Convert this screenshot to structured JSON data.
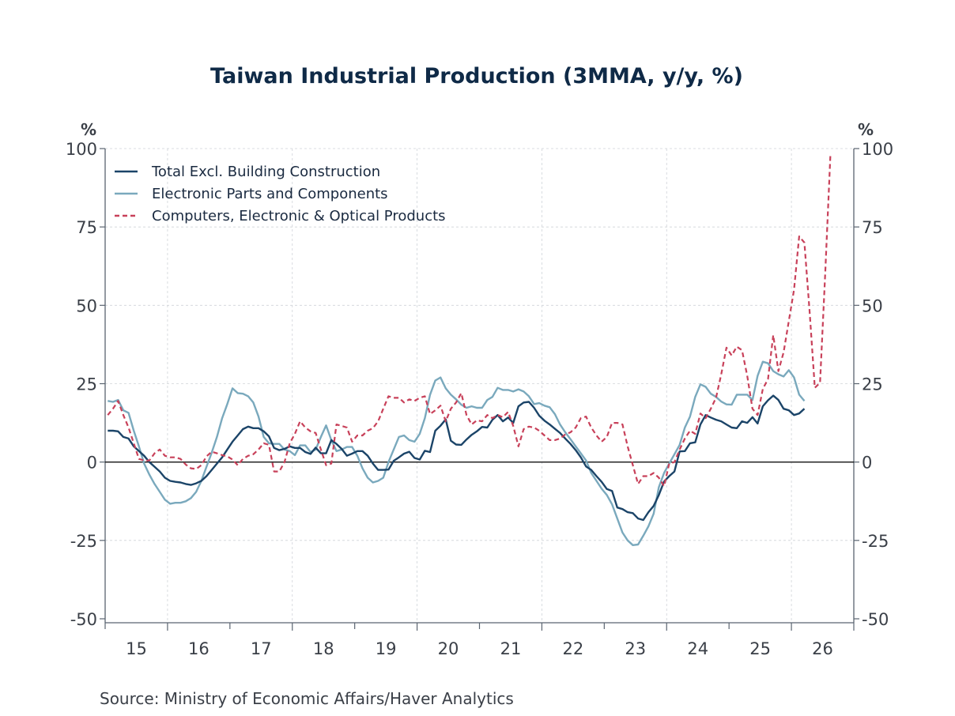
{
  "chart_data": {
    "type": "line",
    "title": "Taiwan Industrial Production (3MMA, y/y, %)",
    "source": "Source:  Ministry of Economic Affairs/Haver Analytics",
    "xlabel": "",
    "ylabel_left": "%",
    "ylabel_right": "%",
    "ylim": [
      -50,
      100
    ],
    "yticks": [
      100,
      75,
      50,
      25,
      0,
      -25,
      -50
    ],
    "ytick_labels": [
      "100",
      "75",
      "50",
      "25",
      "0",
      "-25",
      "-50"
    ],
    "x_start": "2015-01",
    "x_end": "2026-12",
    "x_tick_labels": [
      "15",
      "16",
      "17",
      "18",
      "19",
      "20",
      "21",
      "22",
      "23",
      "24",
      "25",
      "26"
    ],
    "grid": true,
    "zero_line": true,
    "legend_position": "top-left",
    "frequency": "monthly",
    "series": [
      {
        "name": "Total Excl. Building Construction",
        "color": "#1b4468",
        "style": "solid",
        "start": "2015-01",
        "values": [
          10,
          10,
          9.8,
          8,
          7.5,
          5,
          3.5,
          2,
          0,
          -1.5,
          -3,
          -5,
          -6,
          -6.3,
          -6.5,
          -7,
          -7.3,
          -6.8,
          -6,
          -4.5,
          -2.5,
          -0.5,
          1.5,
          4,
          6.5,
          8.5,
          10.5,
          11.3,
          10.8,
          10.8,
          9.8,
          8.2,
          4.5,
          3.8,
          4.2,
          5,
          4.5,
          4.5,
          3.2,
          2.6,
          4.6,
          2.8,
          2.8,
          7,
          5.8,
          4.2,
          2,
          2.7,
          3.5,
          3.5,
          2,
          -0.5,
          -2.5,
          -2.5,
          -2.4,
          0.4,
          1.5,
          2.7,
          3.3,
          1.3,
          0.8,
          3.6,
          3.2,
          10,
          11.6,
          13.6,
          6.8,
          5.6,
          5.5,
          7.2,
          8.7,
          9.8,
          11.2,
          11,
          13.5,
          15,
          13,
          14.2,
          12.5,
          17.8,
          19,
          19.2,
          17.3,
          14.8,
          13.2,
          12,
          10.6,
          9.3,
          7.5,
          5.8,
          3.8,
          1.5,
          -1.4,
          -2.5,
          -4.5,
          -6.3,
          -8.6,
          -9.2,
          -14.5,
          -15,
          -16,
          -16.3,
          -18,
          -18.5,
          -16,
          -14,
          -10.5,
          -6.2,
          -4.5,
          -3,
          3.4,
          3.5,
          6,
          6.3,
          12,
          15,
          14.2,
          13.5,
          13,
          12,
          11,
          10.8,
          13,
          12.5,
          14.3,
          12.3,
          17.8,
          19.7,
          21.2,
          19.8,
          17,
          16.5,
          15,
          15.5,
          17
        ]
      },
      {
        "name": "Electronic Parts and Components",
        "color": "#7aa9bd",
        "style": "solid",
        "start": "2015-01",
        "values": [
          19.5,
          19.2,
          19.8,
          16.5,
          15.7,
          10,
          5,
          -0.5,
          -4,
          -7,
          -9.5,
          -12,
          -13.3,
          -13,
          -13,
          -12.5,
          -11.5,
          -9.5,
          -6,
          -1.5,
          3,
          8,
          14,
          18.5,
          23.5,
          22,
          21.8,
          21,
          19,
          14.5,
          8,
          6,
          5.8,
          5.8,
          4,
          3.5,
          2.2,
          5.3,
          5.3,
          3.2,
          4,
          8,
          11.7,
          7,
          3.5,
          4,
          4.8,
          4.8,
          2,
          -2,
          -5,
          -6.5,
          -6,
          -5,
          0,
          4,
          8,
          8.5,
          7,
          6.5,
          9,
          14,
          21.5,
          26,
          27,
          23.5,
          21.5,
          20,
          18.3,
          17.3,
          17.8,
          17.3,
          17.3,
          19.8,
          20.8,
          23.7,
          23,
          23,
          22.5,
          23.2,
          22.5,
          21,
          18.5,
          18.8,
          18,
          17.5,
          15.3,
          12,
          9.5,
          7.3,
          5,
          2.8,
          0.5,
          -3.5,
          -6,
          -8.5,
          -10.5,
          -13.5,
          -18,
          -22.5,
          -25,
          -26.5,
          -26.3,
          -23.5,
          -20.5,
          -16.5,
          -8,
          -3.5,
          -0.5,
          2.5,
          5.5,
          11,
          14.5,
          20.8,
          24.8,
          24,
          21.8,
          20.8,
          19.3,
          18.4,
          18.3,
          21.5,
          21.5,
          21.5,
          19.8,
          27.5,
          32,
          31.5,
          29,
          28,
          27.3,
          29.3,
          27,
          21.5,
          19.5
        ]
      },
      {
        "name": "Computers, Electronic & Optical Products",
        "color": "#c8415a",
        "style": "dashed",
        "start": "2015-01",
        "values": [
          15,
          17,
          19.5,
          15,
          11,
          6,
          1,
          0.5,
          0.5,
          2.8,
          4,
          2,
          1.5,
          1.5,
          1,
          -0.8,
          -2,
          -2.2,
          -1,
          1.8,
          3.3,
          2.8,
          2.2,
          1.8,
          0.8,
          -1,
          1,
          2,
          2.5,
          4,
          6,
          5.5,
          -3,
          -3,
          0,
          6,
          9,
          13,
          11,
          9.8,
          9.3,
          4,
          -1,
          -0.5,
          12,
          11.5,
          11,
          6.5,
          8.5,
          8.5,
          10,
          10.8,
          13,
          17,
          21,
          20.5,
          20.5,
          19,
          20,
          19.5,
          20.5,
          21,
          15.3,
          16.5,
          18,
          13,
          17,
          19,
          22,
          15,
          12,
          13.3,
          13,
          15,
          14,
          15,
          14.3,
          16,
          11.5,
          5,
          10.5,
          11.3,
          11,
          10,
          8.5,
          7,
          7,
          7.5,
          8.8,
          9.5,
          11,
          14,
          14.5,
          11,
          8.5,
          6.5,
          8,
          12.5,
          12.5,
          12,
          5,
          -1,
          -7,
          -4.5,
          -4.5,
          -3.5,
          -5,
          -7.7,
          -0.5,
          0,
          4,
          7.5,
          10,
          9,
          15.5,
          14,
          17,
          20.5,
          28,
          36.5,
          34,
          36.8,
          35.7,
          27.5,
          17,
          15,
          23.3,
          26.5,
          40.5,
          29,
          35,
          45,
          55,
          72,
          70,
          48,
          23.7,
          25.3,
          60,
          98
        ]
      }
    ]
  }
}
